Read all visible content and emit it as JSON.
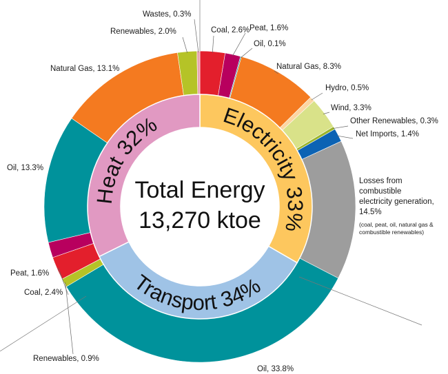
{
  "center": {
    "title": "Total Energy",
    "value": "13,270 ktoe"
  },
  "chart_data": {
    "type": "pie",
    "subtype": "nested-donut",
    "inner_ring": [
      {
        "name": "Electricity",
        "label": "Electricity 33%",
        "value": 33,
        "color": "#fdc75e"
      },
      {
        "name": "Transport",
        "label": "Transport 34%",
        "value": 34,
        "color": "#9fc3e6"
      },
      {
        "name": "Heat",
        "label": "Heat 32%",
        "value": 32,
        "color": "#e199c2"
      }
    ],
    "outer_ring": [
      {
        "label": "Coal, 2.6%",
        "value": 2.6,
        "color": "#e31f2c",
        "group": "Electricity"
      },
      {
        "label": "Peat, 1.6%",
        "value": 1.6,
        "color": "#b8005e",
        "group": "Electricity"
      },
      {
        "label": "Oil, 0.1%",
        "value": 0.1,
        "color": "#00929b",
        "group": "Electricity"
      },
      {
        "label": "Natural Gas, 8.3%",
        "value": 8.3,
        "color": "#f47a20",
        "group": "Electricity"
      },
      {
        "label": "Hydro, 0.5%",
        "value": 0.5,
        "color": "#fcd6a2",
        "group": "Electricity"
      },
      {
        "label": "Wind, 3.3%",
        "value": 3.3,
        "color": "#d9e289",
        "group": "Electricity"
      },
      {
        "label": "Other Renewables, 0.3%",
        "value": 0.3,
        "color": "#9bb52a",
        "group": "Electricity"
      },
      {
        "label": "Net Imports, 1.4%",
        "value": 1.4,
        "color": "#0c63b4",
        "group": "Electricity"
      },
      {
        "label": "Losses from combustible electricity generation, 14.5%",
        "value": 14.5,
        "color": "#9d9d9d",
        "group": "Electricity",
        "label_lines": [
          "Losses from",
          "combustible",
          "electricity generation,",
          "14.5%"
        ],
        "note_lines": [
          "(coal, peat, oil, natural gas &",
          "combustible renewables)"
        ]
      },
      {
        "label": "Oil, 33.8%",
        "value": 33.8,
        "color": "#00929b",
        "group": "Transport"
      },
      {
        "label": "Renewables, 0.9%",
        "value": 0.9,
        "color": "#b5c327",
        "group": "Transport"
      },
      {
        "label": "Coal, 2.4%",
        "value": 2.4,
        "color": "#e31f2c",
        "group": "Heat"
      },
      {
        "label": "Peat, 1.6%",
        "value": 1.6,
        "color": "#b8005e",
        "group": "Heat"
      },
      {
        "label": "Oil, 13.3%",
        "value": 13.3,
        "color": "#00929b",
        "group": "Heat"
      },
      {
        "label": "Natural Gas, 13.1%",
        "value": 13.1,
        "color": "#f47a20",
        "group": "Heat"
      },
      {
        "label": "Renewables, 2.0%",
        "value": 2.0,
        "color": "#b5c327",
        "group": "Heat"
      },
      {
        "label": "Wastes, 0.3%",
        "value": 0.3,
        "color": "#e8a2b0",
        "group": "Heat"
      }
    ]
  }
}
